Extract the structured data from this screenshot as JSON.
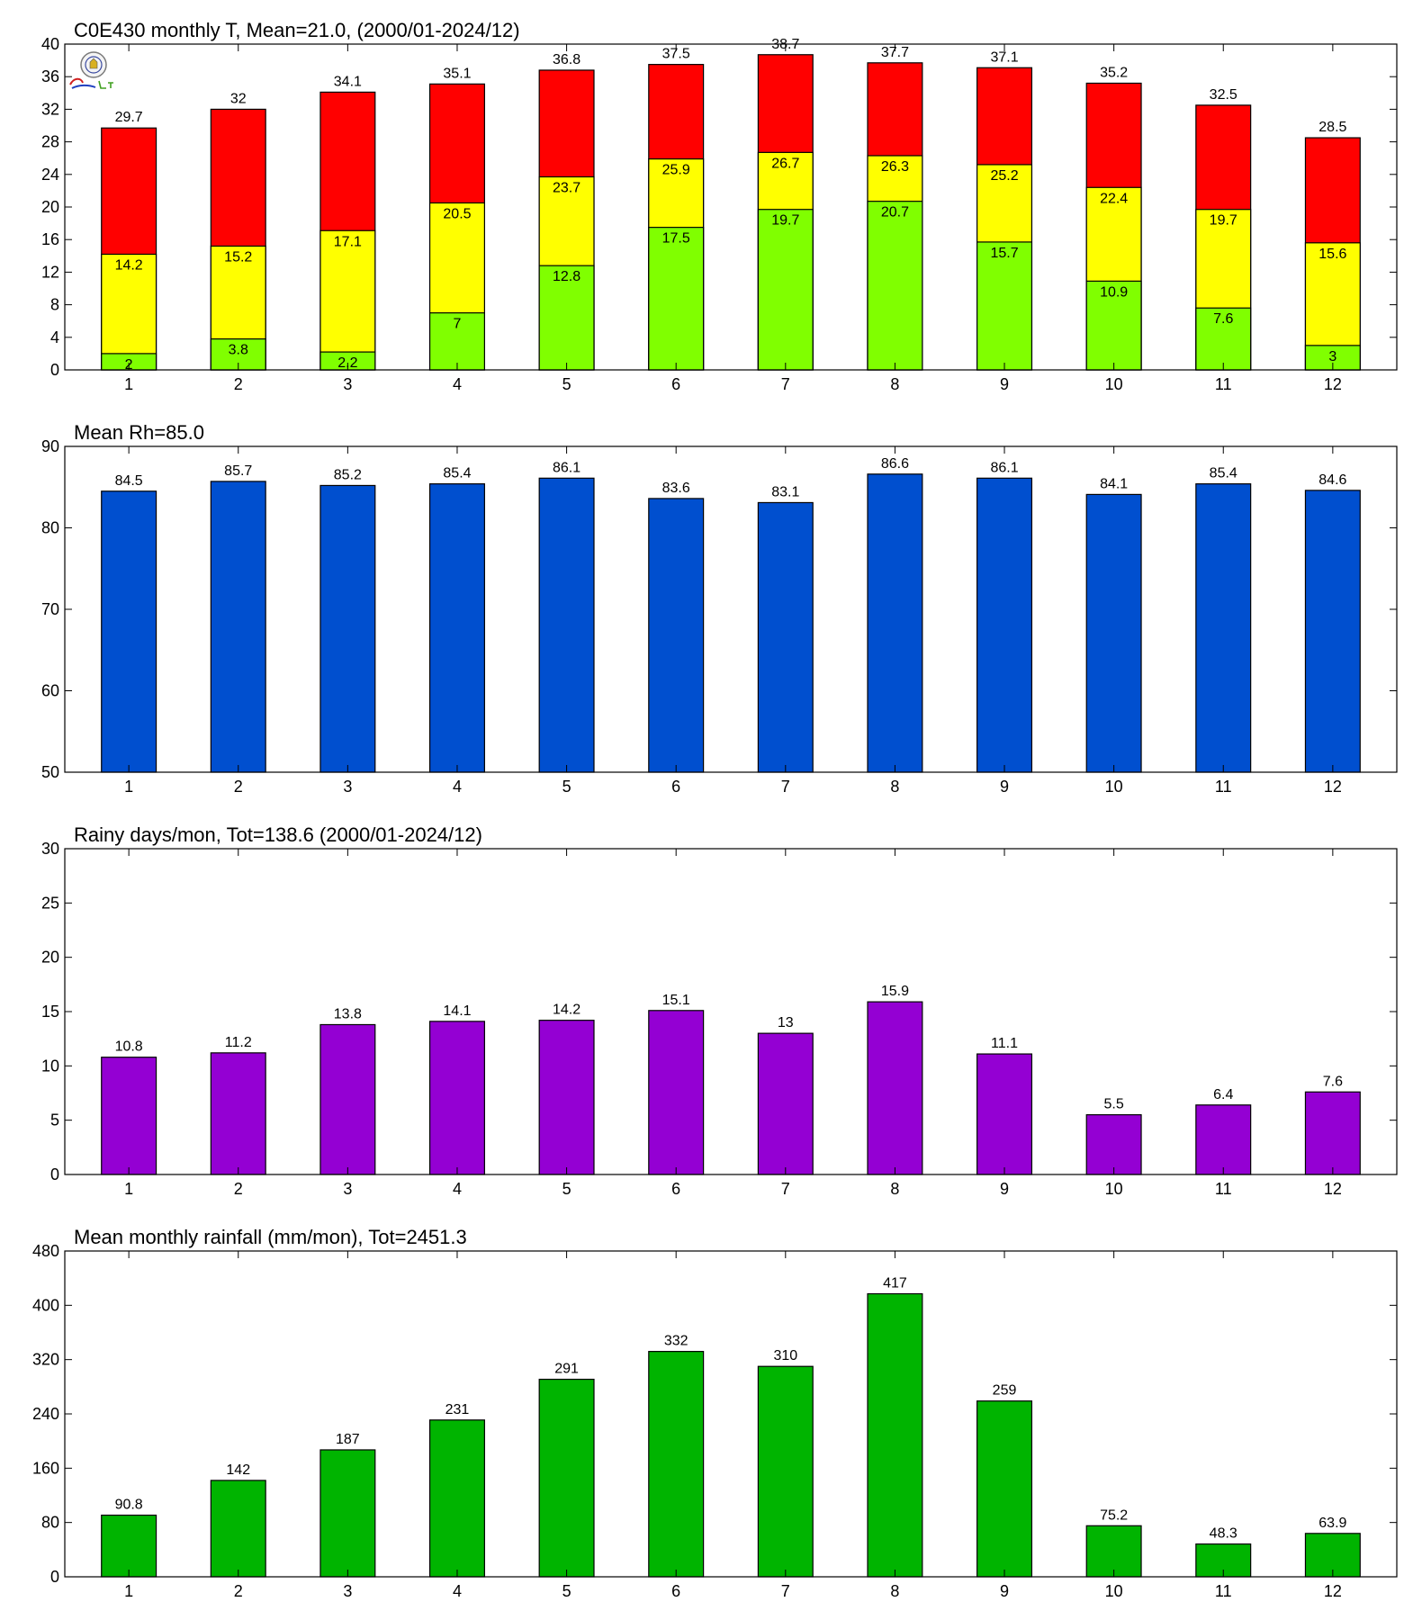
{
  "colors": {
    "temp_min": "#80ff00",
    "temp_mean": "#ffff00",
    "temp_max": "#ff0000",
    "humidity": "#004fcf",
    "rainy_days": "#9400d3",
    "rainfall": "#00b400"
  },
  "logo": {
    "icon": "station-logo-icon"
  },
  "chart_data": [
    {
      "type": "bar",
      "stacked_display": "overlaid",
      "title": "C0E430 monthly T, Mean=21.0, (2000/01-2024/12)",
      "categories": [
        "1",
        "2",
        "3",
        "4",
        "5",
        "6",
        "7",
        "8",
        "9",
        "10",
        "11",
        "12"
      ],
      "ylim": [
        0,
        40
      ],
      "yticks": [
        0,
        4,
        8,
        12,
        16,
        20,
        24,
        28,
        32,
        36,
        40
      ],
      "series": [
        {
          "role": "max",
          "values": [
            29.7,
            32,
            34.1,
            35.1,
            36.8,
            37.5,
            38.7,
            37.7,
            37.1,
            35.2,
            32.5,
            28.5
          ],
          "labels": [
            "29.7",
            "32",
            "34.1",
            "35.1",
            "36.8",
            "37.5",
            "38.7",
            "37.7",
            "37.1",
            "35.2",
            "32.5",
            "28.5"
          ],
          "color": "#ff0000"
        },
        {
          "role": "mean",
          "values": [
            14.2,
            15.2,
            17.1,
            20.5,
            23.7,
            25.9,
            26.7,
            26.3,
            25.2,
            22.4,
            19.7,
            15.6
          ],
          "labels": [
            "14.2",
            "15.2",
            "17.1",
            "20.5",
            "23.7",
            "25.9",
            "26.7",
            "26.3",
            "25.2",
            "22.4",
            "19.7",
            "15.6"
          ],
          "color": "#ffff00"
        },
        {
          "role": "min",
          "values": [
            2,
            3.8,
            2.2,
            7,
            12.8,
            17.5,
            19.7,
            20.7,
            15.7,
            10.9,
            7.6,
            3
          ],
          "labels": [
            "2",
            "3.8",
            "2.2",
            "7",
            "12.8",
            "17.5",
            "19.7",
            "20.7",
            "15.7",
            "10.9",
            "7.6",
            "3"
          ],
          "color": "#80ff00"
        }
      ],
      "grid": false
    },
    {
      "type": "bar",
      "title": "Mean Rh=85.0",
      "categories": [
        "1",
        "2",
        "3",
        "4",
        "5",
        "6",
        "7",
        "8",
        "9",
        "10",
        "11",
        "12"
      ],
      "ylim": [
        50,
        90
      ],
      "yticks": [
        50,
        60,
        70,
        80,
        90
      ],
      "values": [
        84.5,
        85.7,
        85.2,
        85.4,
        86.1,
        83.6,
        83.1,
        86.6,
        86.1,
        84.1,
        85.4,
        84.6
      ],
      "labels": [
        "84.5",
        "85.7",
        "85.2",
        "85.4",
        "86.1",
        "83.6",
        "83.1",
        "86.6",
        "86.1",
        "84.1",
        "85.4",
        "84.6"
      ],
      "color": "#004fcf",
      "grid": false
    },
    {
      "type": "bar",
      "title": "Rainy days/mon, Tot=138.6 (2000/01-2024/12)",
      "categories": [
        "1",
        "2",
        "3",
        "4",
        "5",
        "6",
        "7",
        "8",
        "9",
        "10",
        "11",
        "12"
      ],
      "ylim": [
        0,
        30
      ],
      "yticks": [
        0,
        5,
        10,
        15,
        20,
        25,
        30
      ],
      "values": [
        10.8,
        11.2,
        13.8,
        14.1,
        14.2,
        15.1,
        13,
        15.9,
        11.1,
        5.5,
        6.4,
        7.6
      ],
      "labels": [
        "10.8",
        "11.2",
        "13.8",
        "14.1",
        "14.2",
        "15.1",
        "13",
        "15.9",
        "11.1",
        "5.5",
        "6.4",
        "7.6"
      ],
      "color": "#9400d3",
      "grid": false
    },
    {
      "type": "bar",
      "title": "Mean monthly rainfall (mm/mon), Tot=2451.3",
      "categories": [
        "1",
        "2",
        "3",
        "4",
        "5",
        "6",
        "7",
        "8",
        "9",
        "10",
        "11",
        "12"
      ],
      "ylim": [
        0,
        480
      ],
      "yticks": [
        0,
        80,
        160,
        240,
        320,
        400,
        480
      ],
      "values": [
        90.8,
        142,
        187,
        231,
        291,
        332,
        310,
        417,
        259,
        75.2,
        48.3,
        63.9
      ],
      "labels": [
        "90.8",
        "142",
        "187",
        "231",
        "291",
        "332",
        "310",
        "417",
        "259",
        "75.2",
        "48.3",
        "63.9"
      ],
      "color": "#00b400",
      "grid": false
    }
  ]
}
